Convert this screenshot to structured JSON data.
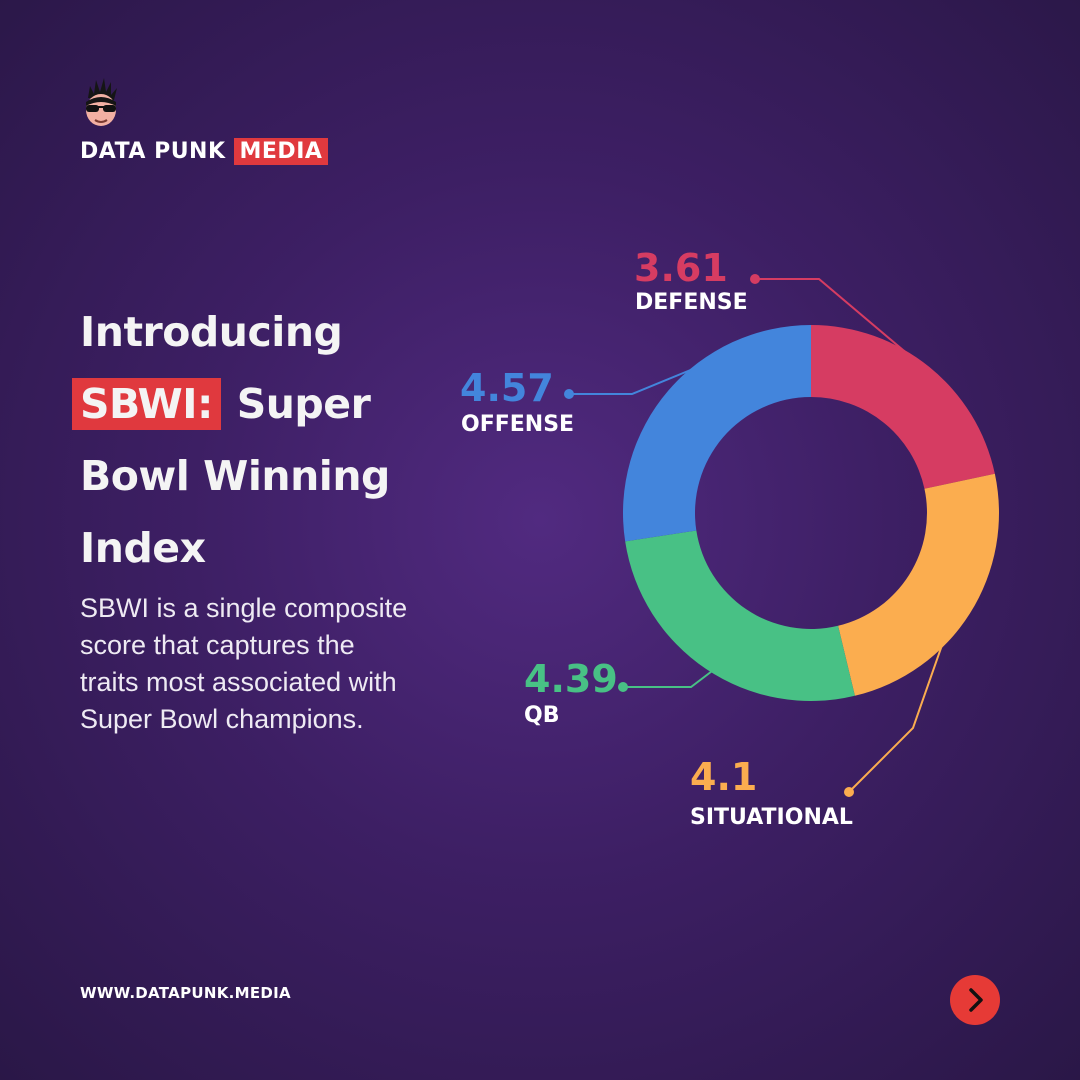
{
  "brand": {
    "name": "DATA PUNK",
    "tag": "MEDIA"
  },
  "headline": {
    "highlight": "SBWI:",
    "line1": "Introducing",
    "line2_rest": "Super",
    "line3": "Bowl Winning",
    "line4": "Index"
  },
  "description": "SBWI is a single composite score that captures the traits most associated with Super Bowl champions.",
  "website": "WWW.DATAPUNK.MEDIA",
  "colors": {
    "accent": "#e0393e",
    "defense": "#d63c62",
    "situational": "#fbad4f",
    "qb": "#48c185",
    "offense": "#4385dc"
  },
  "chart_data": {
    "type": "pie",
    "donut": true,
    "slices": [
      {
        "label": "DEFENSE",
        "value": 3.61,
        "display": "3.61",
        "color": "#d63c62"
      },
      {
        "label": "SITUATIONAL",
        "value": 4.1,
        "display": "4.1",
        "color": "#fbad4f"
      },
      {
        "label": "QB",
        "value": 4.39,
        "display": "4.39",
        "color": "#48c185"
      },
      {
        "label": "OFFENSE",
        "value": 4.57,
        "display": "4.57",
        "color": "#4385dc"
      }
    ]
  }
}
